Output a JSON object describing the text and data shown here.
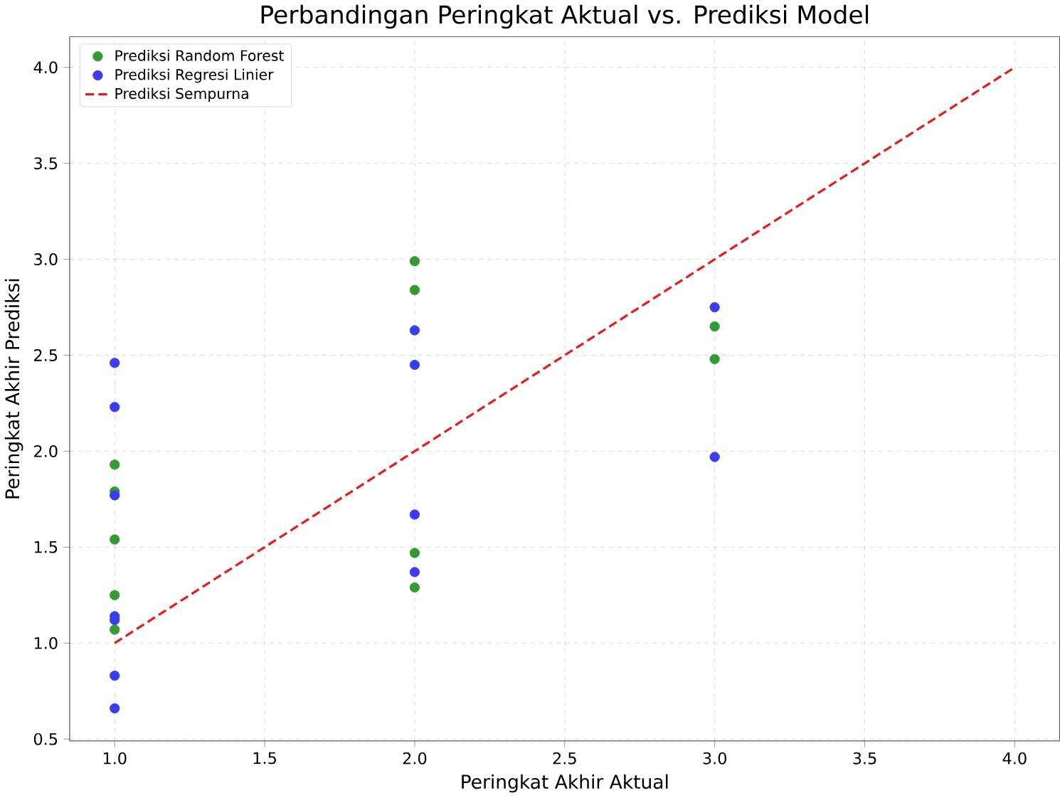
{
  "chart_data": {
    "type": "scatter",
    "title": "Perbandingan Peringkat Aktual vs. Prediksi Model",
    "xlabel": "Peringkat Akhir Aktual",
    "ylabel": "Peringkat Akhir Prediksi",
    "xlim": [
      0.85,
      4.15
    ],
    "ylim": [
      0.49,
      4.16
    ],
    "xticks": [
      {
        "value": 1,
        "label": "1.0"
      },
      1.5,
      {
        "value": 2,
        "label": "2.0"
      },
      2.5,
      {
        "value": 3,
        "label": "3.0"
      },
      3.5,
      {
        "value": 4,
        "label": "4.0"
      }
    ],
    "yticks": [
      0.5,
      {
        "value": 1,
        "label": "1.0"
      },
      1.5,
      {
        "value": 2,
        "label": "2.0"
      },
      2.5,
      {
        "value": 3,
        "label": "3.0"
      },
      3.5,
      {
        "value": 4,
        "label": "4.0"
      }
    ],
    "grid": true,
    "legend": "top left",
    "series": [
      {
        "name": "Prediksi Random Forest",
        "marker": "circle",
        "color": "#349a34",
        "x": [
          1,
          1,
          1,
          1,
          1,
          2,
          2,
          2,
          2,
          3,
          3
        ],
        "values": [
          1.93,
          1.79,
          1.54,
          1.25,
          1.07,
          2.99,
          2.84,
          1.47,
          1.29,
          2.65,
          2.48
        ]
      },
      {
        "name": "Prediksi Regresi Linier",
        "marker": "circle",
        "color": "#3c3cec",
        "x": [
          1,
          1,
          1,
          1,
          1,
          1,
          1,
          2,
          2,
          2,
          2,
          3,
          3
        ],
        "values": [
          2.46,
          2.23,
          1.77,
          1.14,
          1.12,
          0.83,
          0.66,
          2.63,
          2.45,
          1.67,
          1.37,
          2.75,
          1.97
        ]
      },
      {
        "name": "Prediksi Sempurna",
        "type": "line",
        "marker": "none",
        "color": "#e02020",
        "line_style": "dashed",
        "x": [
          1,
          4
        ],
        "values": [
          1,
          4
        ]
      }
    ]
  }
}
